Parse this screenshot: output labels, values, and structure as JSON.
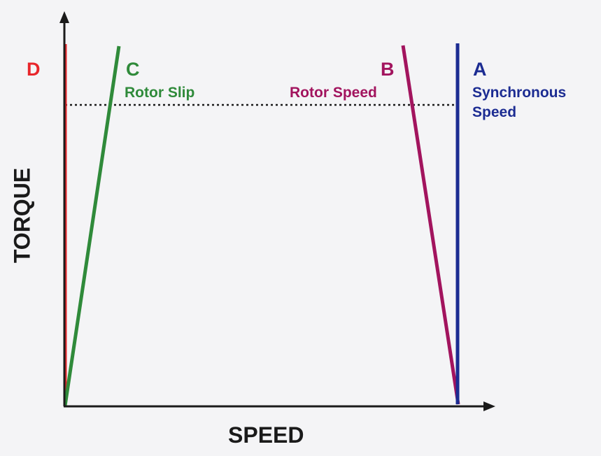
{
  "colors": {
    "axis": "#1a1a1a",
    "line_d": "#e8262b",
    "line_c": "#2f8a3a",
    "line_b": "#a2145e",
    "line_a": "#1c2c92",
    "background": "#f4f4f6"
  },
  "axes": {
    "x_label": "SPEED",
    "y_label": "TORQUE"
  },
  "lines": {
    "d": {
      "letter": "D",
      "caption": ""
    },
    "c": {
      "letter": "C",
      "caption": "Rotor Slip"
    },
    "b": {
      "letter": "B",
      "caption": "Rotor Speed"
    },
    "a": {
      "letter": "A",
      "caption_line1": "Synchronous",
      "caption_line2": "Speed"
    }
  }
}
